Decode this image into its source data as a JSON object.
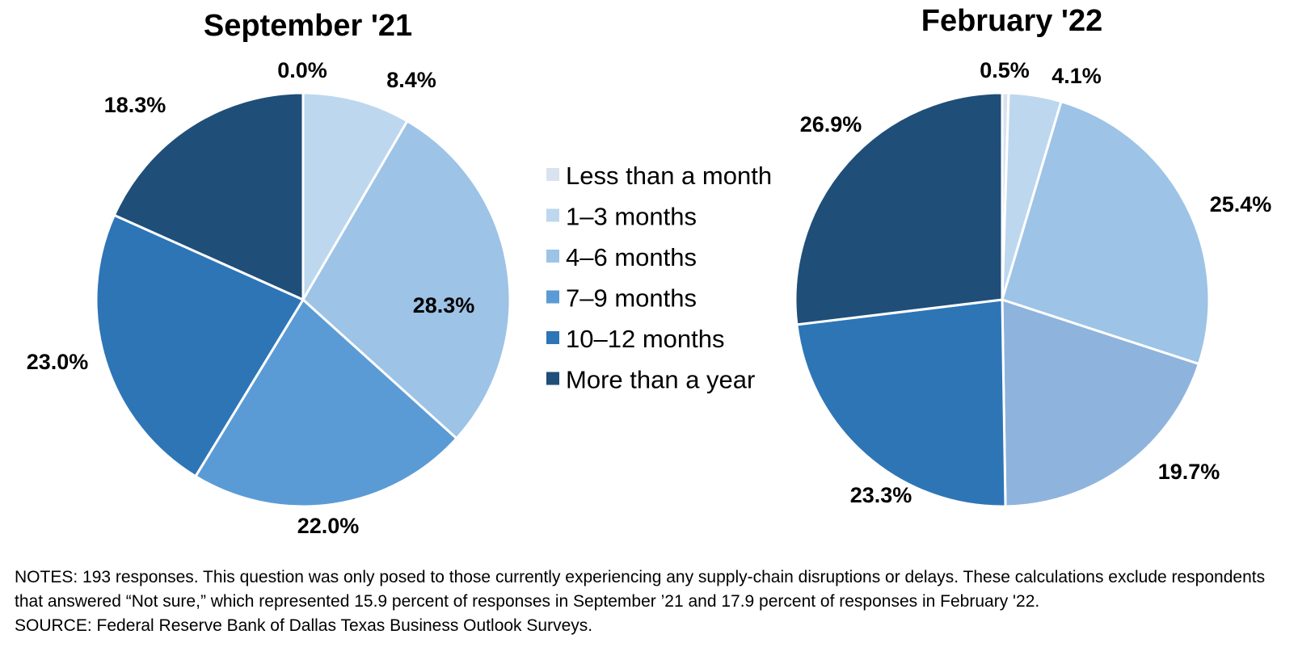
{
  "chart_data": [
    {
      "type": "pie",
      "title": "September '21",
      "categories": [
        "Less than a month",
        "1–3 months",
        "4–6 months",
        "7–9 months",
        "10–12 months",
        "More than a year"
      ],
      "values": [
        0.0,
        8.4,
        28.3,
        22.0,
        23.0,
        18.3
      ],
      "value_labels": [
        "0.0%",
        "8.4%",
        "28.3%",
        "22.0%",
        "23.0%",
        "18.3%"
      ],
      "colors": [
        "#d9e3f0",
        "#bdd7ee",
        "#9dc3e6",
        "#5b9bd5",
        "#2e75b6",
        "#1f4e79"
      ]
    },
    {
      "type": "pie",
      "title": "February '22",
      "categories": [
        "Less than a month",
        "1–3 months",
        "4–6 months",
        "7–9 months",
        "10–12 months",
        "More than a year"
      ],
      "values": [
        0.5,
        4.1,
        25.4,
        19.7,
        23.3,
        26.9
      ],
      "value_labels": [
        "0.5%",
        "4.1%",
        "25.4%",
        "19.7%",
        "23.3%",
        "26.9%"
      ],
      "colors": [
        "#d9e3f0",
        "#bdd7ee",
        "#9dc3e6",
        "#8eb4dd",
        "#2e75b6",
        "#1f4e79"
      ]
    }
  ],
  "legend": {
    "placement": "center",
    "items": [
      {
        "label": "Less than a month",
        "color": "#d9e3f0"
      },
      {
        "label": "1–3 months",
        "color": "#bdd7ee"
      },
      {
        "label": "4–6 months",
        "color": "#9dc3e6"
      },
      {
        "label": "7–9 months",
        "color": "#5b9bd5"
      },
      {
        "label": "10–12 months",
        "color": "#2e75b6"
      },
      {
        "label": "More than a year",
        "color": "#1f4e79"
      }
    ]
  },
  "notes": {
    "text": "NOTES: 193 responses. This question was only posed to those currently experiencing any supply-chain disruptions or delays. These calculations exclude respondents that answered “Not sure,” which represented 15.9 percent of responses in September ’21 and 17.9 percent of responses in February '22.",
    "source": "SOURCE: Federal Reserve Bank of Dallas Texas Business Outlook Surveys."
  }
}
